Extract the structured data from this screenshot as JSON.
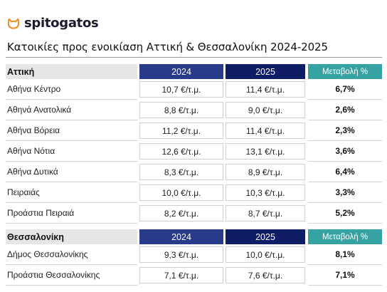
{
  "brand": {
    "name": "spitogatos",
    "icon": "cat-face-icon",
    "color": "#f28b1e"
  },
  "title": "Κατοικίες προς ενοικίαση Αττική & Θεσσαλονίκη 2024-2025",
  "colors": {
    "header_2024": "#283a8a",
    "header_2025": "#0f1c66",
    "header_change": "#35a3a3"
  },
  "sections": [
    {
      "region": "Αττική",
      "col_2024": "2024",
      "col_2025": "2025",
      "col_change": "Μεταβολή %",
      "rows": [
        {
          "area": "Αθήνα Κέντρο",
          "v2024": "10,7 €/τ.μ.",
          "v2025": "11,4 €/τ.μ.",
          "change": "6,7%"
        },
        {
          "area": "Αθηνά Ανατολικά",
          "v2024": "8,8 €/τ.μ.",
          "v2025": "9,0 €/τ.μ.",
          "change": "2,6%"
        },
        {
          "area": "Αθήνα Βόρεια",
          "v2024": "11,2 €/τ.μ.",
          "v2025": "11,4 €/τ.μ.",
          "change": "2,3%"
        },
        {
          "area": "Αθήνα Νότια",
          "v2024": "12,6 €/τ.μ.",
          "v2025": "13,1 €/τ.μ.",
          "change": "3,6%"
        },
        {
          "area": "Αθήνα Δυτικά",
          "v2024": "8,3 €/τ.μ.",
          "v2025": "8,9 €/τ.μ.",
          "change": "6,4%"
        },
        {
          "area": "Πειραιάς",
          "v2024": "10,0 €/τ.μ.",
          "v2025": "10,3 €/τ.μ.",
          "change": "3,3%"
        },
        {
          "area": "Προάστια Πειραιά",
          "v2024": "8,2 €/τ.μ.",
          "v2025": "8,7 €/τ.μ.",
          "change": "5,2%"
        }
      ]
    },
    {
      "region": "Θεσσαλονίκη",
      "col_2024": "2024",
      "col_2025": "2025",
      "col_change": "Μεταβολή %",
      "rows": [
        {
          "area": "Δήμος Θεσσαλονίκης",
          "v2024": "9,3 €/τ.μ.",
          "v2025": "10,0 €/τ.μ.",
          "change": "8,1%"
        },
        {
          "area": "Προάστια Θεσσαλονίκης",
          "v2024": "7,1 €/τ.μ.",
          "v2025": "7,6 €/τ.μ.",
          "change": "7,1%"
        }
      ]
    }
  ]
}
